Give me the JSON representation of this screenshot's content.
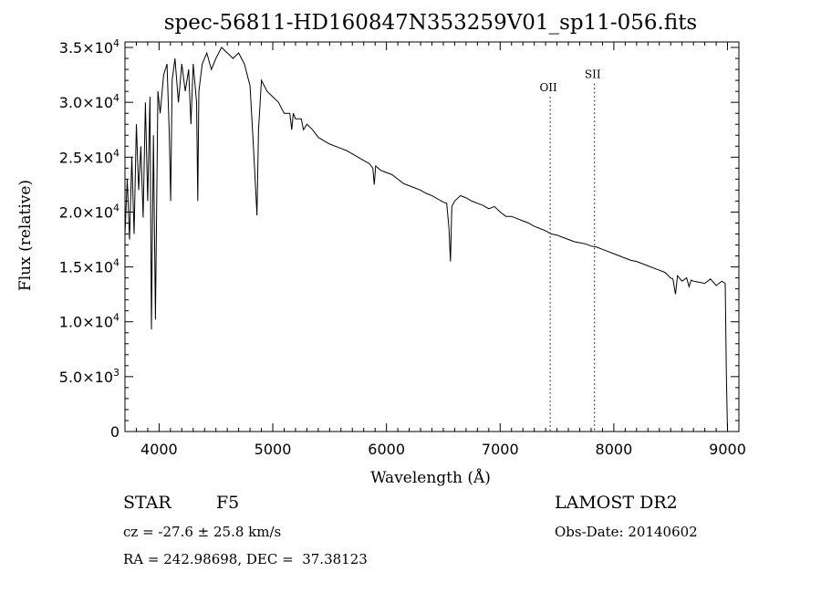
{
  "chart_data": {
    "type": "line",
    "title": "spec-56811-HD160847N353259V01_sp11-056.fits",
    "xlabel": "Wavelength (Å)",
    "ylabel": "Flux (relative)",
    "xlim": [
      3700,
      9100
    ],
    "ylim": [
      0,
      35500
    ],
    "x_ticks": [
      {
        "value": 4000,
        "label": "4000"
      },
      {
        "value": 5000,
        "label": "5000"
      },
      {
        "value": 6000,
        "label": "6000"
      },
      {
        "value": 7000,
        "label": "7000"
      },
      {
        "value": 8000,
        "label": "8000"
      },
      {
        "value": 9000,
        "label": "9000"
      }
    ],
    "y_ticks": [
      {
        "value": 0,
        "mant": "0",
        "exp": ""
      },
      {
        "value": 5000,
        "mant": "5.0×10",
        "exp": "3"
      },
      {
        "value": 10000,
        "mant": "1.0×10",
        "exp": "4"
      },
      {
        "value": 15000,
        "mant": "1.5×10",
        "exp": "4"
      },
      {
        "value": 20000,
        "mant": "2.0×10",
        "exp": "4"
      },
      {
        "value": 25000,
        "mant": "2.5×10",
        "exp": "4"
      },
      {
        "value": 30000,
        "mant": "3.0×10",
        "exp": "4"
      },
      {
        "value": 35000,
        "mant": "3.5×10",
        "exp": "4"
      }
    ],
    "grid": false,
    "series": [
      {
        "x": [
          3700,
          3720,
          3740,
          3760,
          3780,
          3800,
          3820,
          3840,
          3860,
          3880,
          3900,
          3920,
          3933,
          3950,
          3968,
          3990,
          4010,
          4040,
          4070,
          4090,
          4102,
          4115,
          4140,
          4170,
          4200,
          4230,
          4260,
          4280,
          4300,
          4330,
          4340,
          4350,
          4380,
          4420,
          4460,
          4500,
          4550,
          4600,
          4650,
          4700,
          4750,
          4800,
          4830,
          4850,
          4861,
          4875,
          4900,
          4950,
          5000,
          5050,
          5100,
          5150,
          5167,
          5180,
          5200,
          5250,
          5270,
          5300,
          5350,
          5400,
          5450,
          5500,
          5550,
          5600,
          5650,
          5700,
          5750,
          5800,
          5850,
          5880,
          5893,
          5905,
          5950,
          6000,
          6050,
          6100,
          6150,
          6200,
          6250,
          6300,
          6350,
          6400,
          6450,
          6500,
          6530,
          6550,
          6563,
          6575,
          6600,
          6650,
          6700,
          6750,
          6800,
          6850,
          6900,
          6950,
          7000,
          7050,
          7100,
          7150,
          7200,
          7250,
          7300,
          7350,
          7400,
          7450,
          7500,
          7550,
          7600,
          7650,
          7700,
          7750,
          7800,
          7850,
          7900,
          7950,
          8000,
          8050,
          8100,
          8150,
          8200,
          8250,
          8300,
          8350,
          8400,
          8450,
          8498,
          8520,
          8542,
          8560,
          8600,
          8640,
          8662,
          8680,
          8700,
          8750,
          8800,
          8850,
          8900,
          8950,
          8980,
          8990,
          9000
        ],
        "y": [
          18000,
          23000,
          17500,
          25000,
          18000,
          28000,
          22000,
          26000,
          19500,
          30000,
          21000,
          30500,
          9300,
          27000,
          10200,
          31000,
          29000,
          32500,
          33500,
          27000,
          21000,
          32000,
          34000,
          30000,
          33500,
          31000,
          33000,
          28000,
          33500,
          30000,
          21000,
          31000,
          33500,
          34500,
          33000,
          34000,
          35000,
          34500,
          34000,
          34500,
          33500,
          31500,
          26000,
          22000,
          19700,
          27500,
          32000,
          31000,
          30500,
          30000,
          29000,
          29000,
          27500,
          29000,
          28500,
          28500,
          27500,
          28000,
          27500,
          26800,
          26500,
          26200,
          26000,
          25800,
          25600,
          25300,
          25000,
          24700,
          24400,
          24000,
          22500,
          24200,
          23800,
          23600,
          23400,
          23000,
          22600,
          22400,
          22200,
          22000,
          21700,
          21500,
          21200,
          20900,
          20800,
          18500,
          15500,
          20500,
          21000,
          21500,
          21300,
          21000,
          20800,
          20600,
          20300,
          20500,
          20000,
          19600,
          19600,
          19400,
          19200,
          19000,
          18700,
          18500,
          18300,
          18000,
          17900,
          17700,
          17500,
          17300,
          17200,
          17100,
          16900,
          16800,
          16600,
          16400,
          16200,
          16000,
          15800,
          15600,
          15500,
          15300,
          15100,
          14900,
          14700,
          14500,
          14000,
          13900,
          12500,
          14200,
          13700,
          14000,
          13200,
          13800,
          13700,
          13600,
          13500,
          13900,
          13300,
          13700,
          13500,
          5000,
          0
        ]
      }
    ],
    "annotations": [
      {
        "label": "OII",
        "wavelength": 7440,
        "y": 31000
      },
      {
        "label": "SII",
        "wavelength": 7830,
        "y": 32200
      }
    ]
  },
  "info": {
    "object_class": "STAR",
    "subclass": "F5",
    "redshift": "cz = -27.6 ± 25.8 km/s",
    "coords": "RA = 242.98698, DEC =  37.38123",
    "survey": "LAMOST DR2",
    "obs_date": "Obs-Date: 20140602"
  }
}
